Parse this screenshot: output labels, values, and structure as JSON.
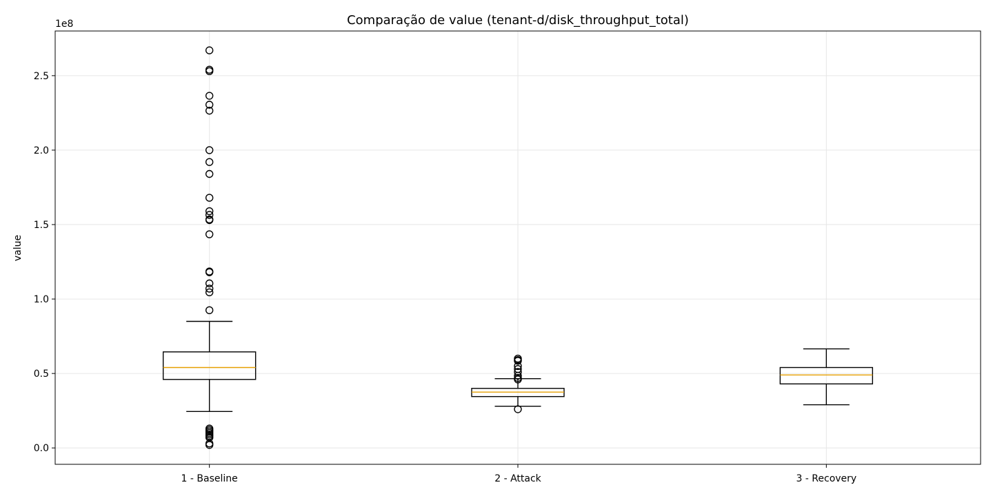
{
  "chart_data": {
    "type": "boxplot",
    "title": "Comparação de value (tenant-d/disk_throughput_total)",
    "ylabel": "value",
    "xlabel": "",
    "y_offset_label": "1e8",
    "y_scale": 100000000,
    "ylim": [
      -11000000,
      280000000
    ],
    "yticks": [
      0,
      50000000,
      100000000,
      150000000,
      200000000,
      250000000
    ],
    "ytick_labels": [
      "0.0",
      "0.5",
      "1.0",
      "1.5",
      "2.0",
      "2.5"
    ],
    "grid": true,
    "colors": {
      "median": "#e69f00",
      "box": "#000000",
      "grid": "#e6e6e6"
    },
    "categories": [
      "1 - Baseline",
      "2 - Attack",
      "3 - Recovery"
    ],
    "boxes": [
      {
        "label": "1 - Baseline",
        "whisker_low": 24500000,
        "q1": 46000000,
        "median": 54000000,
        "q3": 64500000,
        "whisker_high": 85000000,
        "fliers": [
          267000000,
          254000000,
          253000000,
          236500000,
          230500000,
          226500000,
          200000000,
          192000000,
          184000000,
          168000000,
          159000000,
          156500000,
          153500000,
          153000000,
          143500000,
          118500000,
          118000000,
          110500000,
          107000000,
          104500000,
          92500000,
          13000000,
          12000000,
          11000000,
          10000000,
          9000000,
          8000000,
          7000000,
          3000000,
          2000000
        ]
      },
      {
        "label": "2 - Attack",
        "whisker_low": 28000000,
        "q1": 34500000,
        "median": 37500000,
        "q3": 40000000,
        "whisker_high": 46500000,
        "fliers": [
          60000000,
          59000000,
          58500000,
          55000000,
          53000000,
          51000000,
          48500000,
          47000000,
          46000000,
          26000000
        ]
      },
      {
        "label": "3 - Recovery",
        "whisker_low": 29000000,
        "q1": 43000000,
        "median": 49000000,
        "q3": 54000000,
        "whisker_high": 66500000,
        "fliers": []
      }
    ]
  }
}
